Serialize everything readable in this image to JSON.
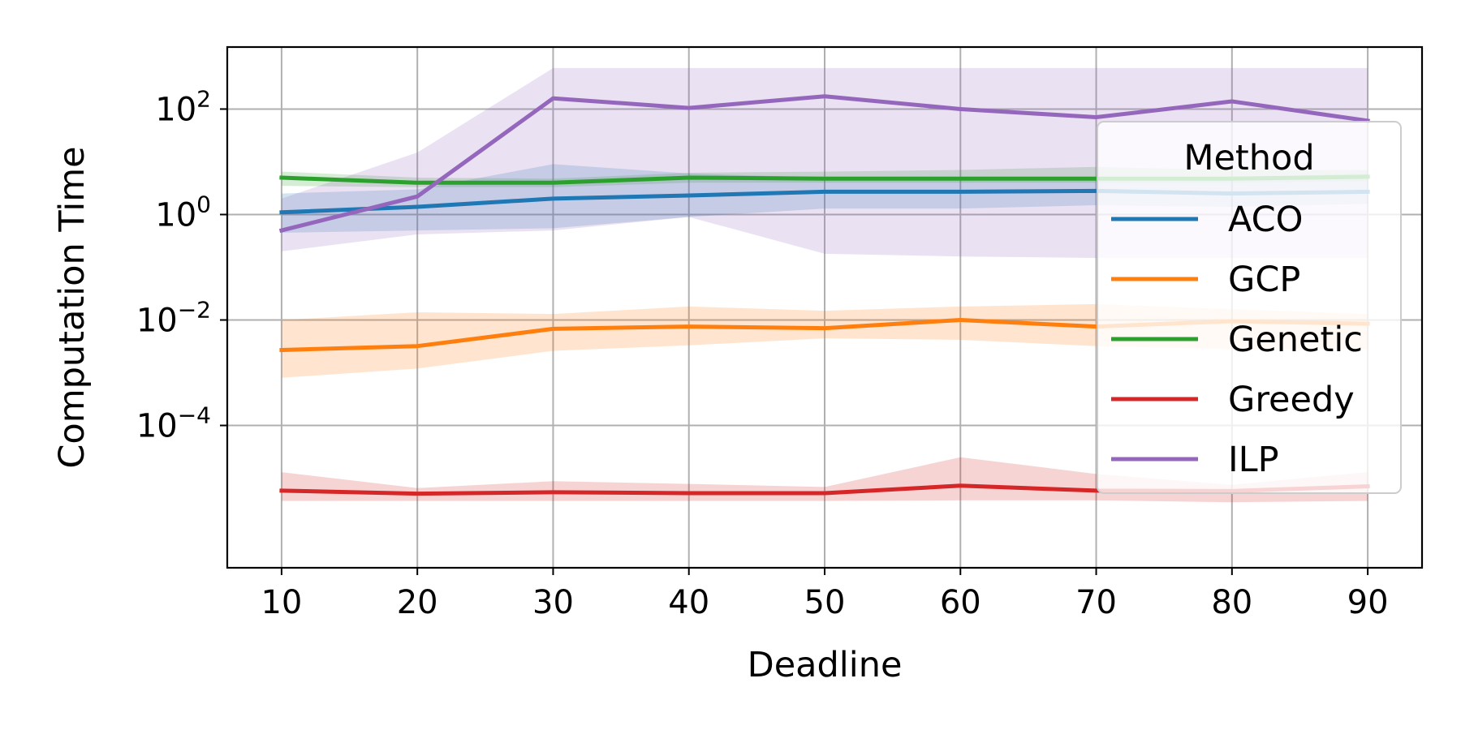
{
  "chart_data": {
    "type": "line",
    "xlabel": "Deadline",
    "ylabel": "Computation Time",
    "yscale": "log",
    "x": [
      10,
      20,
      30,
      40,
      50,
      60,
      70,
      80,
      90
    ],
    "xlim": [
      6,
      94
    ],
    "ylim": [
      2e-07,
      1500
    ],
    "x_ticks": [
      "10",
      "20",
      "30",
      "40",
      "50",
      "60",
      "70",
      "80",
      "90"
    ],
    "y_ticks": [
      {
        "base": "10",
        "exp": "2",
        "value": 100
      },
      {
        "base": "10",
        "exp": "0",
        "value": 1
      },
      {
        "base": "10",
        "exp": "−2",
        "value": 0.01
      },
      {
        "base": "10",
        "exp": "−4",
        "value": 0.0001
      }
    ],
    "grid": true,
    "legend": {
      "title": "Method",
      "position": "right"
    },
    "series": [
      {
        "name": "ACO",
        "color": "#1f77b4",
        "values": [
          1.1,
          1.4,
          2.0,
          2.3,
          2.7,
          2.7,
          2.8,
          2.5,
          2.7
        ],
        "lower": [
          0.45,
          0.5,
          0.55,
          0.9,
          1.3,
          1.3,
          1.5,
          1.4,
          1.6
        ],
        "upper": [
          2.5,
          3.0,
          9.0,
          6.0,
          5.0,
          5.0,
          5.0,
          5.0,
          6.0
        ]
      },
      {
        "name": "GCP",
        "color": "#ff7f0e",
        "values": [
          0.0027,
          0.0032,
          0.0068,
          0.0075,
          0.007,
          0.01,
          0.0075,
          0.0095,
          0.0085
        ],
        "lower": [
          0.0008,
          0.0012,
          0.0026,
          0.0033,
          0.0045,
          0.0042,
          0.0032,
          0.0028,
          0.0028
        ],
        "upper": [
          0.01,
          0.014,
          0.013,
          0.018,
          0.015,
          0.018,
          0.02,
          0.016,
          0.013
        ]
      },
      {
        "name": "Genetic",
        "color": "#2ca02c",
        "values": [
          5.0,
          4.0,
          4.0,
          5.0,
          4.8,
          4.8,
          4.8,
          4.8,
          5.2
        ],
        "lower": [
          3.5,
          3.3,
          3.3,
          4.0,
          4.0,
          4.0,
          4.0,
          4.0,
          4.3
        ],
        "upper": [
          6.5,
          5.0,
          4.8,
          6.2,
          6.5,
          7.0,
          8.0,
          7.0,
          7.0
        ]
      },
      {
        "name": "Greedy",
        "color": "#d62728",
        "values": [
          5.8e-06,
          5.1e-06,
          5.4e-06,
          5.2e-06,
          5.2e-06,
          7.2e-06,
          5.8e-06,
          5.7e-06,
          7e-06
        ],
        "lower": [
          3.7e-06,
          3.7e-06,
          3.7e-06,
          3.7e-06,
          3.7e-06,
          3.8e-06,
          3.8e-06,
          3.5e-06,
          3.7e-06
        ],
        "upper": [
          1.3e-05,
          6.5e-06,
          8.8e-06,
          7.8e-06,
          6.8e-06,
          2.5e-05,
          1.2e-05,
          7.5e-06,
          1.3e-05
        ]
      },
      {
        "name": "ILP",
        "color": "#9467bd",
        "values": [
          0.5,
          2.2,
          160,
          105,
          175,
          100,
          70,
          140,
          60
        ],
        "lower": [
          0.2,
          0.42,
          0.5,
          0.9,
          0.18,
          0.16,
          0.15,
          0.15,
          0.15
        ],
        "upper": [
          2.0,
          15,
          600,
          600,
          600,
          600,
          600,
          600,
          600
        ]
      }
    ]
  }
}
